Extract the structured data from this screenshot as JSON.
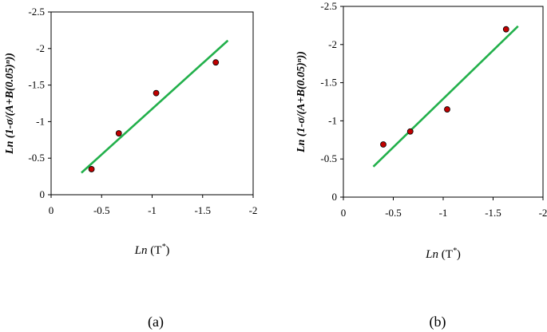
{
  "chart_data": [
    {
      "type": "scatter",
      "panel_label": "(a)",
      "xlabel_main": "Ln",
      "xlabel_arg": "(T",
      "xlabel_sup": "*",
      "xlabel_close": ")",
      "ylabel": "Ln (1-σ/(A+B(0.05)ⁿ))",
      "xlim": [
        0,
        -2
      ],
      "ylim": [
        0,
        -2.5
      ],
      "x_ticks": [
        "0",
        "-0.5",
        "-1",
        "-1.5",
        "-2"
      ],
      "y_ticks": [
        "0",
        "-0.5",
        "-1",
        "-1.5",
        "-2",
        "-2.5"
      ],
      "series": [
        {
          "points": [
            [
              -0.4,
              -0.35
            ],
            [
              -0.67,
              -0.84
            ],
            [
              -1.04,
              -1.39
            ],
            [
              -1.63,
              -1.81
            ]
          ]
        }
      ],
      "fit_line": [
        [
          -0.3,
          -0.3
        ],
        [
          -1.75,
          -2.11
        ]
      ],
      "colors": {
        "points": "#c00000",
        "fit": "#22b04b"
      }
    },
    {
      "type": "scatter",
      "panel_label": "(b)",
      "xlabel_main": "Ln",
      "xlabel_arg": "(T",
      "xlabel_sup": "*",
      "xlabel_close": ")",
      "ylabel": "Ln (1-σ/(A+B(0.05)ⁿ))",
      "xlim": [
        0,
        -2
      ],
      "ylim": [
        0,
        -2.5
      ],
      "x_ticks": [
        "0",
        "-0.5",
        "-1",
        "-1.5",
        "-2"
      ],
      "y_ticks": [
        "0",
        "-0.5",
        "-1",
        "-1.5",
        "-2",
        "-2.5"
      ],
      "series": [
        {
          "points": [
            [
              -0.4,
              -0.69
            ],
            [
              -0.67,
              -0.86
            ],
            [
              -1.04,
              -1.15
            ],
            [
              -1.63,
              -2.2
            ]
          ]
        }
      ],
      "fit_line": [
        [
          -0.3,
          -0.4
        ],
        [
          -1.75,
          -2.24
        ]
      ],
      "colors": {
        "points": "#c00000",
        "fit": "#22b04b"
      }
    }
  ]
}
